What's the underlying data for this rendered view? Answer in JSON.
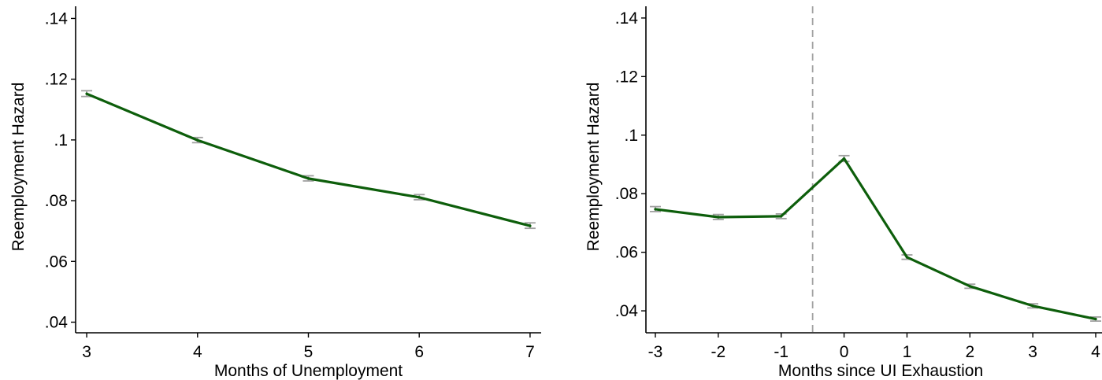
{
  "chart_data": [
    {
      "type": "line",
      "xlabel": "Months of Unemployment",
      "ylabel": "Reemployment Hazard",
      "x": [
        3,
        4,
        5,
        6,
        7
      ],
      "series": [
        {
          "values": [
            0.1152,
            0.0999,
            0.0873,
            0.0811,
            0.0717
          ],
          "ci_low": [
            0.1143,
            0.0991,
            0.0865,
            0.0803,
            0.0709
          ],
          "ci_high": [
            0.1162,
            0.1008,
            0.0882,
            0.082,
            0.0727
          ]
        }
      ],
      "xlim": [
        2.9,
        7.1
      ],
      "ylim": [
        0.0365,
        0.144
      ],
      "xticks": [
        3,
        4,
        5,
        6,
        7
      ],
      "xtick_labels": [
        "3",
        "4",
        "5",
        "6",
        "7"
      ],
      "yticks": [
        0.04,
        0.06,
        0.08,
        0.1,
        0.12,
        0.14
      ],
      "ytick_labels": [
        ".04",
        ".06",
        ".08",
        ".1",
        ".12",
        ".14"
      ],
      "grid": false,
      "line_color": "#0d5e0b",
      "errorbar_color": "#a0a0a0"
    },
    {
      "type": "line",
      "xlabel": "Months since UI Exhaustion",
      "ylabel": "Reemployment Hazard",
      "x": [
        -3,
        -2,
        -1,
        0,
        1,
        2,
        3,
        4
      ],
      "series": [
        {
          "values": [
            0.0747,
            0.072,
            0.0723,
            0.092,
            0.0583,
            0.0484,
            0.0417,
            0.0372
          ],
          "ci_low": [
            0.0739,
            0.0712,
            0.0715,
            0.091,
            0.0576,
            0.0477,
            0.041,
            0.0365
          ],
          "ci_high": [
            0.0756,
            0.0729,
            0.0731,
            0.093,
            0.0591,
            0.0491,
            0.0424,
            0.0379
          ]
        }
      ],
      "reference_line": {
        "x": -0.5,
        "style": "dashed",
        "color": "#a0a0a0"
      },
      "xlim": [
        -3.15,
        4.1
      ],
      "ylim": [
        0.0325,
        0.144
      ],
      "xticks": [
        -3,
        -2,
        -1,
        0,
        1,
        2,
        3,
        4
      ],
      "xtick_labels": [
        "-3",
        "-2",
        "-1",
        "0",
        "1",
        "2",
        "3",
        "4"
      ],
      "yticks": [
        0.04,
        0.06,
        0.08,
        0.1,
        0.12,
        0.14
      ],
      "ytick_labels": [
        ".04",
        ".06",
        ".08",
        ".1",
        ".12",
        ".14"
      ],
      "grid": false,
      "line_color": "#0d5e0b",
      "errorbar_color": "#a0a0a0"
    }
  ]
}
